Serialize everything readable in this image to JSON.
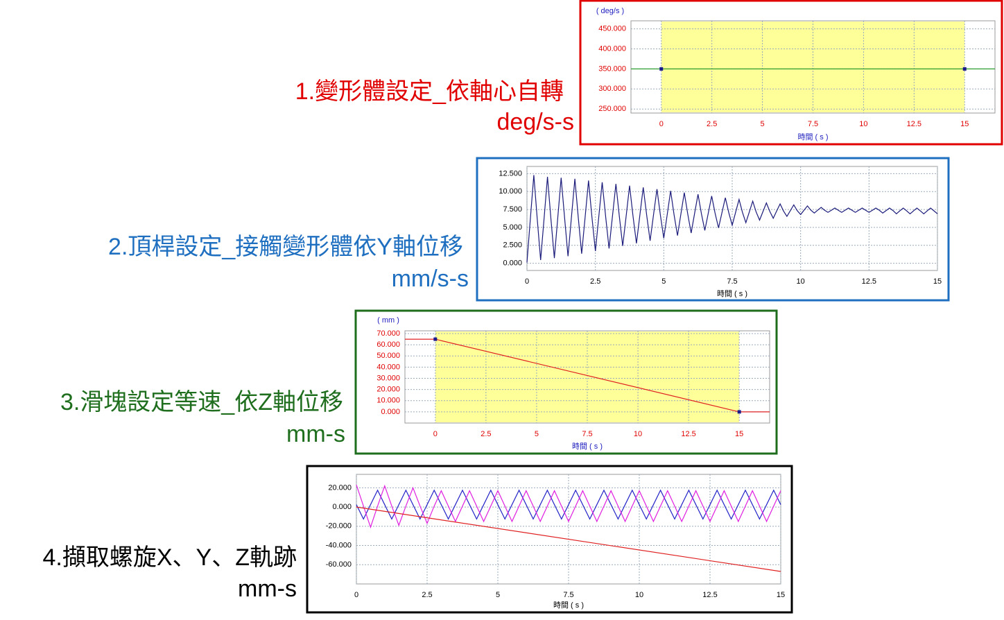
{
  "chart_data": [
    {
      "type": "line",
      "title": "1.變形體設定_依軸心自轉",
      "subtitle": "deg/s-s",
      "y_label": "( deg/s )",
      "x_label": "時間 ( s )",
      "xlim": [
        -1.5,
        16.5
      ],
      "ylim": [
        240,
        470
      ],
      "xticks": [
        0,
        2.5,
        5,
        7.5,
        10,
        12.5,
        15
      ],
      "yticks": [
        {
          "value": 250,
          "label": "250.000"
        },
        {
          "value": 300,
          "label": "300.000"
        },
        {
          "value": 350,
          "label": "350.000"
        },
        {
          "value": 400,
          "label": "400.000"
        },
        {
          "value": 450,
          "label": "450.000"
        }
      ],
      "grid": true,
      "highlight": [
        0,
        15
      ],
      "hold": true,
      "markers": true,
      "series": [
        {
          "color": "#2e9e2e",
          "x": [
            0,
            15
          ],
          "values": [
            350,
            350
          ]
        }
      ]
    },
    {
      "type": "line",
      "title": "2.頂桿設定_接觸變形體依Y軸位移",
      "subtitle": "mm/s-s",
      "x_label": "時間 ( s )",
      "xlim": [
        0,
        15
      ],
      "ylim": [
        -1,
        13.5
      ],
      "xticks": [
        0,
        2.5,
        5,
        7.5,
        10,
        12.5,
        15
      ],
      "yticks": [
        {
          "value": 0,
          "label": "0.000"
        },
        {
          "value": 2.5,
          "label": "2.500"
        },
        {
          "value": 5,
          "label": "5.000"
        },
        {
          "value": 7.5,
          "label": "7.500"
        },
        {
          "value": 10,
          "label": "10.000"
        },
        {
          "value": 12.5,
          "label": "12.500"
        }
      ],
      "grid": true,
      "x": [
        0,
        0.125,
        0.25,
        0.375,
        0.5,
        0.625,
        0.75,
        0.875,
        1,
        1.125,
        1.25,
        1.375,
        1.5,
        1.625,
        1.75,
        1.875,
        2,
        2.125,
        2.25,
        2.375,
        2.5,
        2.625,
        2.75,
        2.875,
        3,
        3.125,
        3.25,
        3.375,
        3.5,
        3.625,
        3.75,
        3.875,
        4,
        4.125,
        4.25,
        4.375,
        4.5,
        4.625,
        4.75,
        4.875,
        5,
        5.125,
        5.25,
        5.375,
        5.5,
        5.625,
        5.75,
        5.875,
        6,
        6.125,
        6.25,
        6.375,
        6.5,
        6.625,
        6.75,
        6.875,
        7,
        7.125,
        7.25,
        7.375,
        7.5,
        7.625,
        7.75,
        7.875,
        8,
        8.125,
        8.25,
        8.375,
        8.5,
        8.625,
        8.75,
        8.875,
        9,
        9.125,
        9.25,
        9.375,
        9.5,
        9.625,
        9.75,
        9.875,
        10,
        10.125,
        10.25,
        10.375,
        10.5,
        10.625,
        10.75,
        10.875,
        11,
        11.125,
        11.25,
        11.375,
        11.5,
        11.625,
        11.75,
        11.875,
        12,
        12.125,
        12.25,
        12.375,
        12.5,
        12.625,
        12.75,
        12.875,
        13,
        13.125,
        13.25,
        13.375,
        13.5,
        13.625,
        13.75,
        13.875,
        14,
        14.125,
        14.25,
        14.375,
        14.5,
        14.625,
        14.75,
        14.875,
        15
      ],
      "series": [
        {
          "color": "#1a1a7a",
          "values": [
            0.1,
            6.2,
            12.3,
            6.2,
            0.46,
            6.26,
            12.06,
            6.26,
            0.72,
            6.32,
            11.92,
            6.32,
            0.98,
            6.38,
            11.78,
            6.38,
            1.34,
            6.44,
            11.54,
            6.44,
            1.7,
            6.5,
            11.3,
            6.5,
            2.06,
            6.56,
            11.06,
            6.56,
            2.42,
            6.62,
            10.82,
            6.62,
            2.78,
            6.68,
            10.58,
            6.68,
            3.14,
            6.74,
            10.34,
            6.74,
            3.5,
            6.8,
            10.1,
            6.8,
            3.86,
            6.86,
            9.86,
            6.86,
            4.22,
            6.92,
            9.62,
            6.92,
            4.58,
            6.98,
            9.38,
            6.98,
            4.94,
            7.04,
            9.14,
            7.04,
            5.3,
            7.1,
            8.9,
            7.1,
            5.66,
            7.16,
            8.66,
            7.16,
            6.02,
            7.22,
            8.42,
            7.22,
            6.28,
            7.28,
            8.28,
            7.28,
            6.54,
            7.34,
            8.14,
            7.34,
            6.8,
            7.4,
            8.0,
            7.4,
            7.0,
            7.4,
            7.8,
            7.4,
            7.1,
            7.4,
            7.7,
            7.4,
            7.1,
            7.4,
            7.7,
            7.4,
            7.1,
            7.4,
            7.7,
            7.4,
            7.1,
            7.4,
            7.7,
            7.4,
            7.0,
            7.35,
            7.7,
            7.35,
            6.9,
            7.3,
            7.7,
            7.3,
            6.9,
            7.3,
            7.7,
            7.3,
            6.9,
            7.3,
            7.7,
            7.3,
            6.9
          ]
        }
      ]
    },
    {
      "type": "line",
      "title": "3.滑塊設定等速_依Z軸位移",
      "subtitle": "mm-s",
      "y_label": "( mm )",
      "x_label": "時間 ( s )",
      "xlim": [
        -1.5,
        16.5
      ],
      "ylim": [
        -10,
        72.5
      ],
      "xticks": [
        0,
        2.5,
        5,
        7.5,
        10,
        12.5,
        15
      ],
      "yticks": [
        {
          "value": 0,
          "label": "0.000"
        },
        {
          "value": 10,
          "label": "10.000"
        },
        {
          "value": 20,
          "label": "20.000"
        },
        {
          "value": 30,
          "label": "30.000"
        },
        {
          "value": 40,
          "label": "40.000"
        },
        {
          "value": 50,
          "label": "50.000"
        },
        {
          "value": 60,
          "label": "60.000"
        },
        {
          "value": 70,
          "label": "70.000"
        }
      ],
      "grid": true,
      "highlight": [
        0,
        15
      ],
      "hold": true,
      "markers": true,
      "series": [
        {
          "color": "#e02020",
          "x": [
            0,
            15
          ],
          "values": [
            65,
            0
          ]
        }
      ]
    },
    {
      "type": "line",
      "title": "4.擷取螺旋X、Y、Z軌跡",
      "subtitle": "mm-s",
      "x_label": "時間 ( s )",
      "xlim": [
        0,
        15
      ],
      "ylim": [
        -80,
        34
      ],
      "xticks": [
        0,
        2.5,
        5,
        7.5,
        10,
        12.5,
        15
      ],
      "yticks": [
        {
          "value": -60,
          "label": "-60.000"
        },
        {
          "value": -40,
          "label": "-40.000"
        },
        {
          "value": -20,
          "label": "-20.000"
        },
        {
          "value": 0,
          "label": "0.000"
        },
        {
          "value": 20,
          "label": "20.000"
        }
      ],
      "grid": true,
      "x": [
        0,
        0.25,
        0.5,
        0.75,
        1,
        1.25,
        1.5,
        1.75,
        2,
        2.25,
        2.5,
        2.75,
        3,
        3.25,
        3.5,
        3.75,
        4,
        4.25,
        4.5,
        4.75,
        5,
        5.25,
        5.5,
        5.75,
        6,
        6.25,
        6.5,
        6.75,
        7,
        7.25,
        7.5,
        7.75,
        8,
        8.25,
        8.5,
        8.75,
        9,
        9.25,
        9.5,
        9.75,
        10,
        10.25,
        10.5,
        10.75,
        11,
        11.25,
        11.5,
        11.75,
        12,
        12.25,
        12.5,
        12.75,
        13,
        13.25,
        13.5,
        13.75,
        14,
        14.25,
        14.5,
        14.75,
        15
      ],
      "series": [
        {
          "color": "#2424c8",
          "values": [
            2.5,
            -12.5,
            2.5,
            17.5,
            2.5,
            -12.5,
            2.5,
            17.5,
            2.5,
            -12.5,
            2.5,
            17.5,
            2.5,
            -12.5,
            2.5,
            17.5,
            2.5,
            -12.5,
            2.5,
            17.5,
            2.5,
            -12.5,
            2.5,
            17.5,
            2.5,
            -12.5,
            2.5,
            17.5,
            2.5,
            -12.5,
            2.5,
            17.5,
            2.5,
            -12.5,
            2.5,
            17.5,
            2.5,
            -12.5,
            2.5,
            17.5,
            2.5,
            -12.5,
            2.5,
            17.5,
            2.5,
            -12.5,
            2.5,
            17.5,
            2.5,
            -12.5,
            2.5,
            17.5,
            2.5,
            -12.5,
            2.5,
            17.5,
            2.5,
            -12.5,
            2.5,
            17.5,
            2.5
          ]
        },
        {
          "color": "#e020e0",
          "values": [
            23,
            1,
            -21,
            1,
            22,
            1,
            -19,
            1,
            20,
            1,
            -17,
            1,
            17,
            1,
            -15,
            1,
            17,
            1,
            -15,
            1,
            17,
            1,
            -15,
            1,
            17,
            1,
            -15,
            1,
            17,
            1,
            -15,
            1,
            17,
            1,
            -15,
            1,
            17,
            1,
            -15,
            1,
            17,
            1,
            -15,
            1,
            17,
            1,
            -15,
            1,
            17,
            1,
            -15,
            1,
            17,
            1,
            -15,
            1,
            17,
            1,
            -15,
            1,
            17
          ]
        },
        {
          "color": "#e02020",
          "x": [
            0,
            15
          ],
          "values": [
            0,
            -67
          ]
        }
      ]
    }
  ]
}
